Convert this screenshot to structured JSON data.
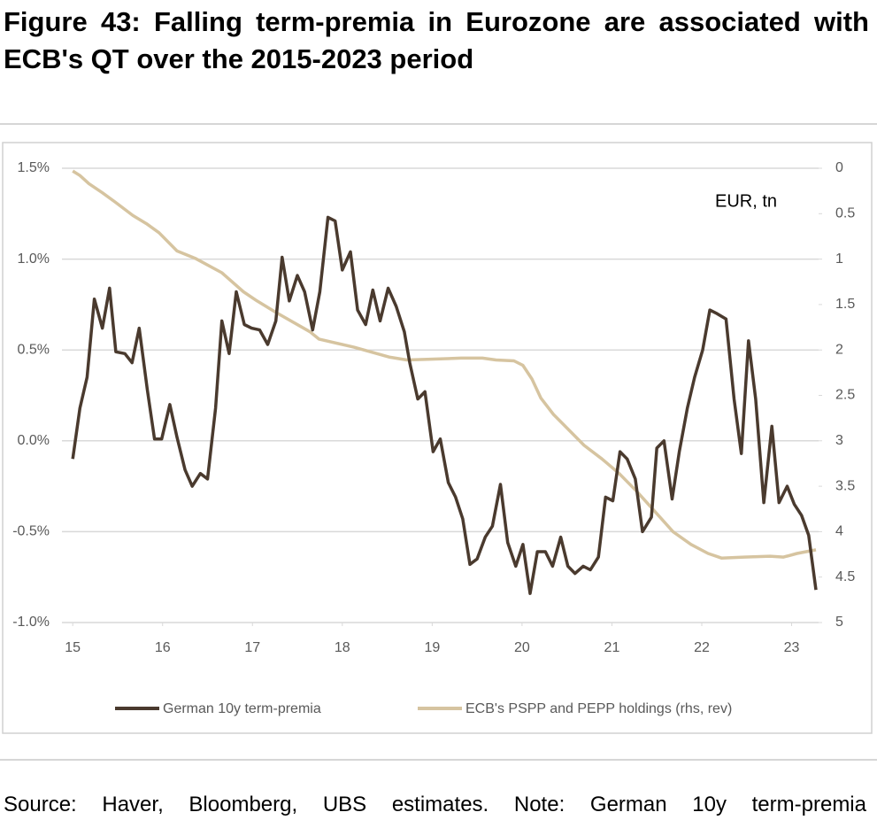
{
  "chart_data": {
    "type": "line",
    "title": "Figure 43: Falling term-premia in Eurozone are associated with ECB's QT over the 2015-2023 period",
    "annotation": "EUR, tn",
    "source": "Source: Haver, Bloomberg, UBS estimates. Note: German 10y term-premia",
    "xlim": [
      14.88,
      23.3
    ],
    "xticks": [
      15,
      16,
      17,
      18,
      19,
      20,
      21,
      22,
      23
    ],
    "ylim": [
      -1.0,
      1.5
    ],
    "yticks": [
      {
        "value": 1.5,
        "label": "1.5%"
      },
      {
        "value": 1.0,
        "label": "1.0%"
      },
      {
        "value": 0.5,
        "label": "0.5%"
      },
      {
        "value": 0.0,
        "label": "0.0%"
      },
      {
        "value": -0.5,
        "label": "-0.5%"
      },
      {
        "value": -1.0,
        "label": "-1.0%"
      }
    ],
    "y2lim": [
      0,
      5
    ],
    "y2_inverted": true,
    "y2ticks": [
      0,
      0.5,
      1,
      1.5,
      2,
      2.5,
      3,
      3.5,
      4,
      4.5,
      5
    ],
    "grid": true,
    "series": [
      {
        "name": "German 10y term-premia",
        "color": "#4a3a2e",
        "axis": "y",
        "x": [
          15.0,
          15.08,
          15.16,
          15.24,
          15.33,
          15.41,
          15.48,
          15.58,
          15.66,
          15.74,
          15.83,
          15.91,
          15.99,
          16.08,
          16.16,
          16.25,
          16.33,
          16.42,
          16.5,
          16.59,
          16.66,
          16.74,
          16.82,
          16.91,
          16.99,
          17.08,
          17.17,
          17.26,
          17.33,
          17.41,
          17.5,
          17.58,
          17.67,
          17.75,
          17.84,
          17.92,
          18.0,
          18.09,
          18.17,
          18.26,
          18.34,
          18.42,
          18.51,
          18.6,
          18.69,
          18.75,
          18.84,
          18.92,
          19.01,
          19.09,
          19.18,
          19.26,
          19.34,
          19.42,
          19.5,
          19.59,
          19.67,
          19.76,
          19.84,
          19.93,
          20.01,
          20.09,
          20.17,
          20.26,
          20.34,
          20.43,
          20.51,
          20.59,
          20.68,
          20.76,
          20.85,
          20.93,
          21.01,
          21.09,
          21.17,
          21.26,
          21.34,
          21.44,
          21.5,
          21.58,
          21.67,
          21.75,
          21.84,
          21.92,
          22.01,
          22.09,
          22.17,
          22.27,
          22.36,
          22.44,
          22.52,
          22.6,
          22.69,
          22.78,
          22.86,
          22.95,
          23.03,
          23.11,
          23.19,
          23.27
        ],
        "values": [
          -0.1,
          0.18,
          0.35,
          0.78,
          0.62,
          0.84,
          0.49,
          0.48,
          0.43,
          0.62,
          0.28,
          0.01,
          0.01,
          0.2,
          0.02,
          -0.16,
          -0.25,
          -0.18,
          -0.21,
          0.18,
          0.66,
          0.48,
          0.82,
          0.64,
          0.62,
          0.61,
          0.53,
          0.66,
          1.01,
          0.77,
          0.91,
          0.82,
          0.61,
          0.82,
          1.23,
          1.21,
          0.94,
          1.04,
          0.72,
          0.64,
          0.83,
          0.66,
          0.84,
          0.74,
          0.6,
          0.43,
          0.23,
          0.27,
          -0.06,
          0.01,
          -0.23,
          -0.31,
          -0.43,
          -0.68,
          -0.65,
          -0.53,
          -0.47,
          -0.24,
          -0.56,
          -0.69,
          -0.57,
          -0.84,
          -0.61,
          -0.61,
          -0.69,
          -0.53,
          -0.69,
          -0.73,
          -0.69,
          -0.71,
          -0.64,
          -0.31,
          -0.33,
          -0.06,
          -0.1,
          -0.21,
          -0.5,
          -0.42,
          -0.04,
          0.0,
          -0.32,
          -0.06,
          0.18,
          0.35,
          0.5,
          0.72,
          0.7,
          0.67,
          0.23,
          -0.07,
          0.55,
          0.23,
          -0.34,
          0.08,
          -0.34,
          -0.25,
          -0.35,
          -0.41,
          -0.52,
          -0.82
        ]
      },
      {
        "name": "ECB's PSPP and PEPP holdings (rhs, rev)",
        "color": "#d6c4a0",
        "axis": "y2",
        "x": [
          15.0,
          15.08,
          15.18,
          15.33,
          15.47,
          15.67,
          15.82,
          15.96,
          16.16,
          16.36,
          16.66,
          16.9,
          17.05,
          17.25,
          17.64,
          17.74,
          18.13,
          18.53,
          18.72,
          19.02,
          19.32,
          19.56,
          19.71,
          19.91,
          20.01,
          20.11,
          20.21,
          20.35,
          20.5,
          20.69,
          20.89,
          21.08,
          21.28,
          21.48,
          21.68,
          21.88,
          22.07,
          22.22,
          22.47,
          22.76,
          22.91,
          23.06,
          23.27
        ],
        "values": [
          0.03,
          0.08,
          0.17,
          0.27,
          0.37,
          0.52,
          0.61,
          0.71,
          0.91,
          0.99,
          1.15,
          1.36,
          1.46,
          1.58,
          1.8,
          1.88,
          1.97,
          2.08,
          2.11,
          2.1,
          2.09,
          2.09,
          2.11,
          2.12,
          2.17,
          2.32,
          2.53,
          2.71,
          2.86,
          3.05,
          3.2,
          3.36,
          3.56,
          3.78,
          4.0,
          4.14,
          4.24,
          4.29,
          4.28,
          4.27,
          4.28,
          4.24,
          4.2
        ]
      }
    ]
  }
}
